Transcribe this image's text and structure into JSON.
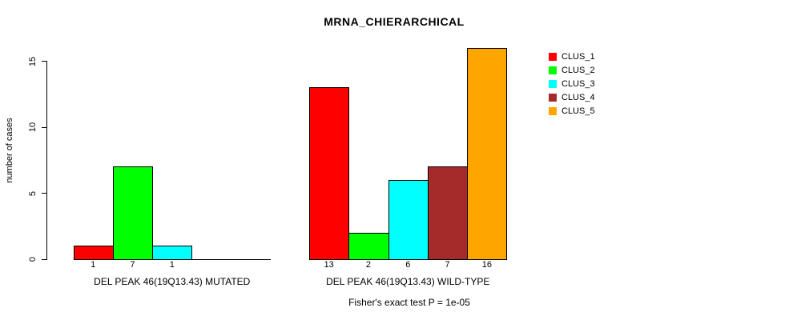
{
  "title": "MRNA_CHIERARCHICAL",
  "y_axis": {
    "label": "number of cases",
    "tick_labels": [
      "0",
      "5",
      "10",
      "15"
    ]
  },
  "footer": "Fisher's exact test P = 1e-05",
  "colors": {
    "axis": "#000000",
    "text": "#000000",
    "background": "#ffffff"
  },
  "chart_data": {
    "type": "bar",
    "title": "MRNA_CHIERARCHICAL",
    "xlabel": "",
    "ylabel": "number of cases",
    "ylim": [
      0,
      16
    ],
    "yticks": [
      0,
      5,
      10,
      15
    ],
    "grid": false,
    "legend_position": "top-right",
    "bar_border_color": "#000000",
    "series": [
      {
        "name": "CLUS_1",
        "color": "#FF0000"
      },
      {
        "name": "CLUS_2",
        "color": "#00FF00"
      },
      {
        "name": "CLUS_3",
        "color": "#00FFFF"
      },
      {
        "name": "CLUS_4",
        "color": "#A52A2A"
      },
      {
        "name": "CLUS_5",
        "color": "#FFA500"
      }
    ],
    "groups": [
      {
        "label": "DEL PEAK 46(19Q13.43) MUTATED",
        "values": [
          1,
          7,
          1,
          0,
          0
        ],
        "bar_value_labels": [
          "1",
          "7",
          "1",
          "",
          ""
        ]
      },
      {
        "label": "DEL PEAK 46(19Q13.43) WILD-TYPE",
        "values": [
          13,
          2,
          6,
          7,
          16
        ],
        "bar_value_labels": [
          "13",
          "2",
          "6",
          "7",
          "16"
        ]
      }
    ],
    "annotation": "Fisher's exact test P = 1e-05"
  }
}
